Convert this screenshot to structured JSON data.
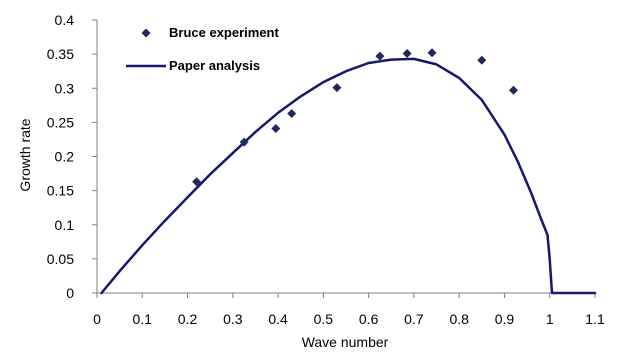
{
  "chart_data": {
    "type": "scatter",
    "xlabel": "Wave number",
    "ylabel": "Growth rate",
    "xlim": [
      0,
      1.1
    ],
    "ylim": [
      0,
      0.4
    ],
    "x_ticks": [
      "0",
      "0.1",
      "0.2",
      "0.3",
      "0.4",
      "0.5",
      "0.6",
      "0.7",
      "0.8",
      "0.9",
      "1",
      "1.1"
    ],
    "y_ticks": [
      "0",
      "0.05",
      "0.1",
      "0.15",
      "0.2",
      "0.25",
      "0.3",
      "0.35",
      "0.4"
    ],
    "grid": false,
    "legend_position": "top-left",
    "series": [
      {
        "name": "Bruce experiment",
        "kind": "scatter",
        "marker": "diamond",
        "color": "#1F2A5C",
        "x": [
          0.22,
          0.325,
          0.395,
          0.43,
          0.53,
          0.625,
          0.685,
          0.74,
          0.85,
          0.92
        ],
        "y": [
          0.163,
          0.221,
          0.241,
          0.263,
          0.301,
          0.347,
          0.351,
          0.352,
          0.341,
          0.297
        ]
      },
      {
        "name": "Paper analysis",
        "kind": "line",
        "color": "#16186E",
        "x": [
          0.01,
          0.05,
          0.1,
          0.15,
          0.2,
          0.25,
          0.3,
          0.35,
          0.4,
          0.45,
          0.5,
          0.55,
          0.6,
          0.65,
          0.7,
          0.75,
          0.8,
          0.85,
          0.9,
          0.93,
          0.96,
          0.98,
          0.995,
          1.0,
          1.005,
          1.01,
          1.02,
          1.05,
          1.1
        ],
        "y": [
          0.0,
          0.032,
          0.07,
          0.106,
          0.14,
          0.174,
          0.205,
          0.236,
          0.264,
          0.288,
          0.309,
          0.325,
          0.337,
          0.342,
          0.343,
          0.335,
          0.315,
          0.283,
          0.232,
          0.192,
          0.145,
          0.11,
          0.085,
          0.05,
          0.0,
          0.0,
          0.0,
          0.0,
          0.0
        ]
      }
    ]
  }
}
